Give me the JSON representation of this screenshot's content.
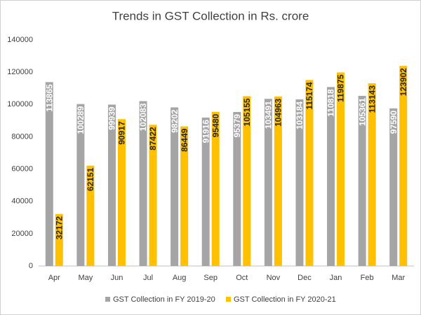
{
  "chart_data": {
    "type": "bar",
    "title": "Trends in GST Collection in Rs. crore",
    "categories": [
      "Apr",
      "May",
      "Jun",
      "Jul",
      "Aug",
      "Sep",
      "Oct",
      "Nov",
      "Dec",
      "Jan",
      "Feb",
      "Mar"
    ],
    "series": [
      {
        "name": "GST Collection in FY 2019-20",
        "color": "#a5a5a5",
        "values": [
          113865,
          100289,
          99939,
          102083,
          98202,
          91916,
          95379,
          103491,
          103184,
          110818,
          105361,
          97590
        ]
      },
      {
        "name": "GST Collection in FY 2020-21",
        "color": "#ffc000",
        "values": [
          32172,
          62151,
          90917,
          87422,
          86449,
          95480,
          105155,
          104963,
          115174,
          119875,
          113143,
          123902
        ]
      }
    ],
    "ylim": [
      0,
      140000
    ],
    "yticks": [
      0,
      20000,
      40000,
      60000,
      80000,
      100000,
      120000,
      140000
    ],
    "grid": false,
    "legend": "bottom",
    "data_labels": true
  }
}
